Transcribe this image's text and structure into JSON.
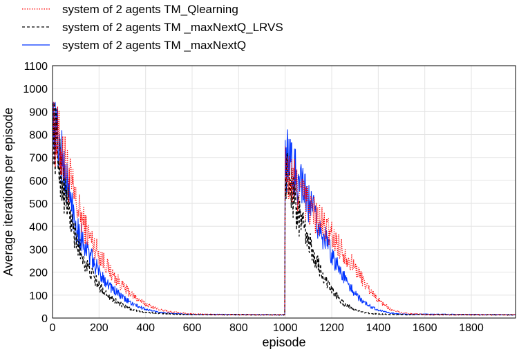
{
  "chart_data": {
    "type": "line",
    "xlabel": "episode",
    "ylabel": "Average iterations per episode",
    "xlim": [
      0,
      1990
    ],
    "ylim": [
      0,
      1100
    ],
    "x_ticks": [
      0,
      200,
      400,
      600,
      800,
      1000,
      1200,
      1400,
      1600,
      1800
    ],
    "y_ticks": [
      0,
      100,
      200,
      300,
      400,
      500,
      600,
      700,
      800,
      900,
      1000,
      1100
    ],
    "grid": true,
    "legend_position": "top-left",
    "series": [
      {
        "name": "system of 2 agents TM_Qlearning",
        "color": "#ff0000",
        "style": "dotted",
        "envelope": [
          {
            "x": 0,
            "y": 850
          },
          {
            "x": 20,
            "y": 780
          },
          {
            "x": 50,
            "y": 690
          },
          {
            "x": 80,
            "y": 580
          },
          {
            "x": 100,
            "y": 500
          },
          {
            "x": 150,
            "y": 370
          },
          {
            "x": 200,
            "y": 280
          },
          {
            "x": 250,
            "y": 200
          },
          {
            "x": 300,
            "y": 140
          },
          {
            "x": 350,
            "y": 95
          },
          {
            "x": 400,
            "y": 60
          },
          {
            "x": 450,
            "y": 40
          },
          {
            "x": 500,
            "y": 28
          },
          {
            "x": 600,
            "y": 18
          },
          {
            "x": 700,
            "y": 15
          },
          {
            "x": 800,
            "y": 14
          },
          {
            "x": 999,
            "y": 14
          },
          {
            "x": 1000,
            "y": 640
          },
          {
            "x": 1020,
            "y": 600
          },
          {
            "x": 1060,
            "y": 560
          },
          {
            "x": 1100,
            "y": 490
          },
          {
            "x": 1150,
            "y": 420
          },
          {
            "x": 1200,
            "y": 360
          },
          {
            "x": 1250,
            "y": 290
          },
          {
            "x": 1300,
            "y": 220
          },
          {
            "x": 1350,
            "y": 140
          },
          {
            "x": 1400,
            "y": 80
          },
          {
            "x": 1450,
            "y": 40
          },
          {
            "x": 1500,
            "y": 22
          },
          {
            "x": 1600,
            "y": 15
          },
          {
            "x": 1990,
            "y": 14
          }
        ]
      },
      {
        "name": "system of 2 agents TM _maxNextQ_LRVS",
        "color": "#000000",
        "style": "dashed",
        "envelope": [
          {
            "x": 0,
            "y": 840
          },
          {
            "x": 20,
            "y": 740
          },
          {
            "x": 50,
            "y": 560
          },
          {
            "x": 80,
            "y": 420
          },
          {
            "x": 100,
            "y": 340
          },
          {
            "x": 150,
            "y": 220
          },
          {
            "x": 200,
            "y": 140
          },
          {
            "x": 250,
            "y": 90
          },
          {
            "x": 300,
            "y": 55
          },
          {
            "x": 350,
            "y": 35
          },
          {
            "x": 400,
            "y": 25
          },
          {
            "x": 500,
            "y": 18
          },
          {
            "x": 600,
            "y": 15
          },
          {
            "x": 999,
            "y": 14
          },
          {
            "x": 1000,
            "y": 660
          },
          {
            "x": 1020,
            "y": 590
          },
          {
            "x": 1050,
            "y": 470
          },
          {
            "x": 1100,
            "y": 330
          },
          {
            "x": 1150,
            "y": 210
          },
          {
            "x": 1200,
            "y": 120
          },
          {
            "x": 1250,
            "y": 65
          },
          {
            "x": 1300,
            "y": 35
          },
          {
            "x": 1350,
            "y": 22
          },
          {
            "x": 1400,
            "y": 17
          },
          {
            "x": 1500,
            "y": 15
          },
          {
            "x": 1990,
            "y": 14
          }
        ]
      },
      {
        "name": "system of 2 agents TM _maxNextQ",
        "color": "#0033ff",
        "style": "solid",
        "envelope": [
          {
            "x": 0,
            "y": 880
          },
          {
            "x": 20,
            "y": 800
          },
          {
            "x": 50,
            "y": 640
          },
          {
            "x": 80,
            "y": 500
          },
          {
            "x": 100,
            "y": 410
          },
          {
            "x": 150,
            "y": 290
          },
          {
            "x": 200,
            "y": 200
          },
          {
            "x": 250,
            "y": 135
          },
          {
            "x": 300,
            "y": 90
          },
          {
            "x": 350,
            "y": 58
          },
          {
            "x": 400,
            "y": 38
          },
          {
            "x": 450,
            "y": 27
          },
          {
            "x": 500,
            "y": 20
          },
          {
            "x": 600,
            "y": 16
          },
          {
            "x": 999,
            "y": 14
          },
          {
            "x": 1000,
            "y": 700
          },
          {
            "x": 1020,
            "y": 670
          },
          {
            "x": 1050,
            "y": 610
          },
          {
            "x": 1100,
            "y": 500
          },
          {
            "x": 1150,
            "y": 390
          },
          {
            "x": 1200,
            "y": 280
          },
          {
            "x": 1250,
            "y": 180
          },
          {
            "x": 1300,
            "y": 105
          },
          {
            "x": 1350,
            "y": 60
          },
          {
            "x": 1400,
            "y": 35
          },
          {
            "x": 1450,
            "y": 22
          },
          {
            "x": 1500,
            "y": 17
          },
          {
            "x": 1990,
            "y": 14
          }
        ]
      }
    ]
  }
}
